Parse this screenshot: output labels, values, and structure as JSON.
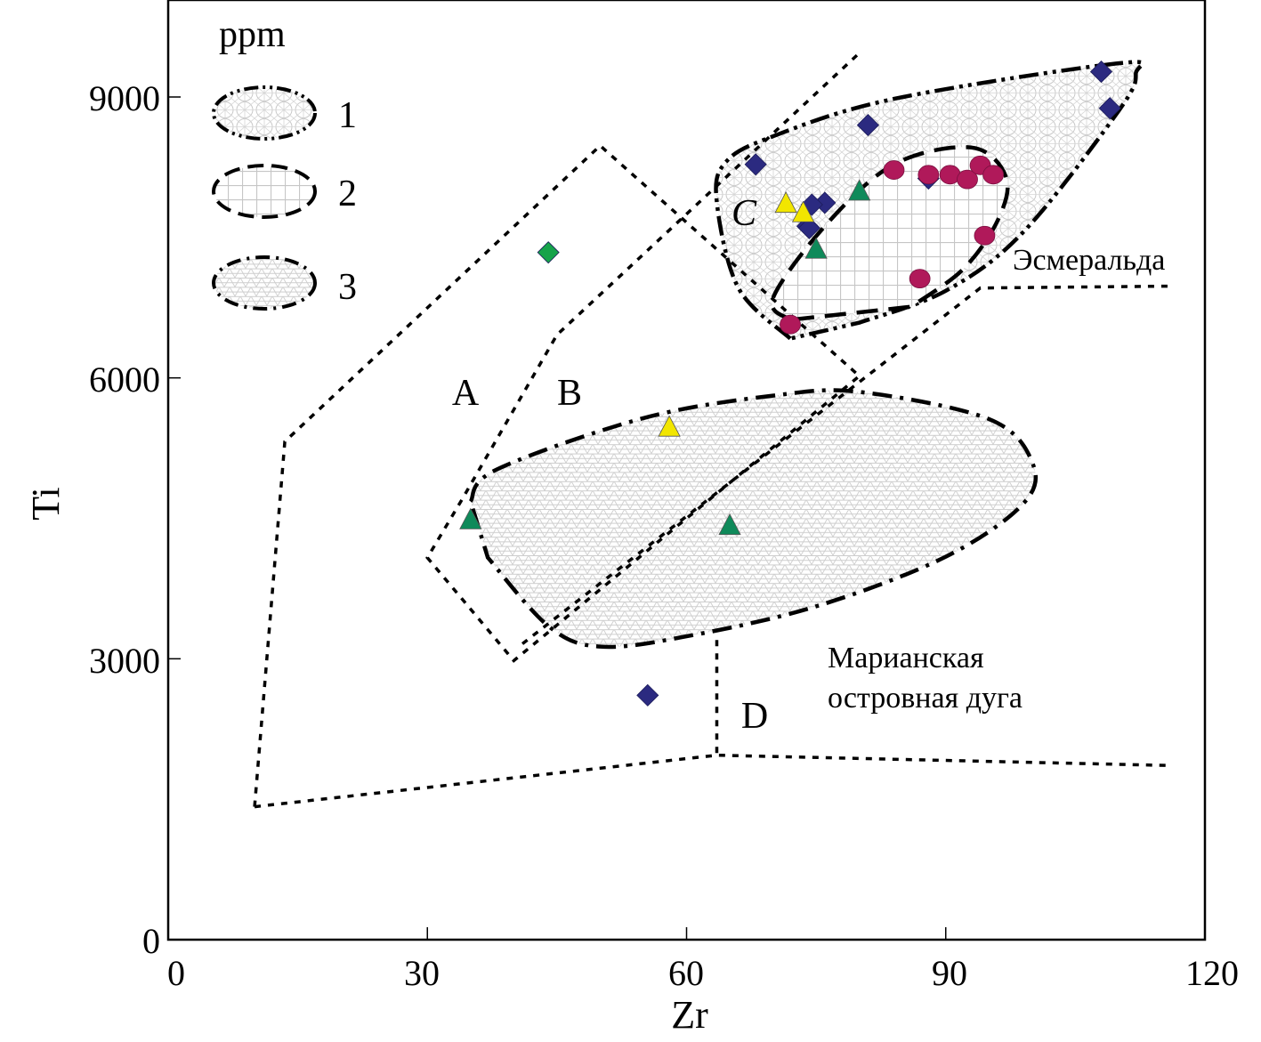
{
  "chart_data": {
    "type": "scatter",
    "title": "",
    "xlabel": "Zr",
    "ylabel": "Ti",
    "xlim": [
      0,
      120
    ],
    "ylim": [
      0,
      9000
    ],
    "x_ticks": [
      0,
      30,
      60,
      90,
      120
    ],
    "y_ticks": [
      0,
      3000,
      6000,
      9000
    ],
    "x_tick_labels": [
      "0",
      "30",
      "60",
      "90",
      "120"
    ],
    "y_tick_labels": [
      "0",
      "3000",
      "6000",
      "9000"
    ],
    "grid": false,
    "legend": {
      "placement": "top-left",
      "unit_label": "ppm",
      "entries": [
        {
          "id": "1",
          "label": "1",
          "pattern": "triangle-circle mesh",
          "border": "dash-dot-dot"
        },
        {
          "id": "2",
          "label": "2",
          "pattern": "square grid",
          "border": "dashed"
        },
        {
          "id": "3",
          "label": "3",
          "pattern": "triangular mesh",
          "border": "dash-dot"
        }
      ]
    },
    "discrimination_regions": {
      "labels": [
        {
          "text": "A",
          "x": 34.5,
          "y": 5840
        },
        {
          "text": "B",
          "x": 46.5,
          "y": 5840
        },
        {
          "text": "C",
          "x": 67.5,
          "y": 7720
        },
        {
          "text": "D",
          "x": 67.5,
          "y": 2370
        }
      ],
      "boundary_lines": [
        {
          "name": "field-A-outline",
          "points": [
            [
              10,
              1420
            ],
            [
              13.5,
              5320
            ],
            [
              50,
              8480
            ],
            [
              80,
              6020
            ],
            [
              40,
              2980
            ],
            [
              30,
              4080
            ],
            [
              34,
              4700
            ],
            [
              45,
              6460
            ],
            [
              80,
              9470
            ]
          ]
        },
        {
          "name": "field-B-line",
          "points": [
            [
              41,
              3160
            ],
            [
              94,
              6960
            ],
            [
              116,
              6980
            ]
          ]
        },
        {
          "name": "field-D-vertical",
          "points": [
            [
              63.5,
              3200
            ],
            [
              63.5,
              1970
            ]
          ]
        },
        {
          "name": "field-D-bottom",
          "points": [
            [
              10,
              1420
            ],
            [
              63.5,
              1970
            ],
            [
              116,
              1860
            ]
          ]
        }
      ]
    },
    "fields": [
      {
        "name": "Эсмеральда field 1",
        "legend_id": "1",
        "outline": [
          [
            72,
            6420
          ],
          [
            66,
            6960
          ],
          [
            63.5,
            7880
          ],
          [
            64.5,
            8300
          ],
          [
            70,
            8580
          ],
          [
            84,
            8980
          ],
          [
            110,
            9360
          ],
          [
            112,
            9250
          ],
          [
            110,
            8850
          ],
          [
            99,
            7560
          ],
          [
            90,
            6930
          ],
          [
            80,
            6590
          ],
          [
            72,
            6420
          ]
        ]
      },
      {
        "name": "Эсмеральда field 2",
        "legend_id": "2",
        "outline": [
          [
            72,
            6620
          ],
          [
            70,
            6850
          ],
          [
            76,
            7620
          ],
          [
            84,
            8280
          ],
          [
            93,
            8460
          ],
          [
            97,
            8140
          ],
          [
            96,
            7680
          ],
          [
            92,
            7160
          ],
          [
            86,
            6760
          ],
          [
            72,
            6420
          ]
        ]
      },
      {
        "name": "Марианская field 3",
        "legend_id": "3",
        "outline": [
          [
            35,
            4680
          ],
          [
            38,
            5020
          ],
          [
            55,
            5570
          ],
          [
            70,
            5810
          ],
          [
            80,
            5850
          ],
          [
            95,
            5560
          ],
          [
            100,
            5100
          ],
          [
            99,
            4660
          ],
          [
            90,
            4090
          ],
          [
            75,
            3560
          ],
          [
            60,
            3240
          ],
          [
            50,
            3130
          ],
          [
            44,
            3350
          ],
          [
            37,
            4080
          ],
          [
            35,
            4680
          ]
        ]
      }
    ],
    "annotations": [
      {
        "text": "Эсмеральда",
        "x": 97.5,
        "y": 7240
      },
      {
        "text": "Марианская",
        "x": 76.5,
        "y": 2980
      },
      {
        "text": "островная дуга",
        "x": 76.5,
        "y": 2660
      }
    ],
    "series": [
      {
        "name": "navy diamonds",
        "marker": "diamond",
        "color": "#2b2a80",
        "points": [
          [
            108,
            9270
          ],
          [
            109,
            8880
          ],
          [
            81,
            8700
          ],
          [
            68,
            8280
          ],
          [
            88,
            8130
          ],
          [
            76,
            7870
          ],
          [
            74.5,
            7850
          ],
          [
            74,
            7620
          ],
          [
            74.2,
            7600
          ],
          [
            55.5,
            2610
          ]
        ]
      },
      {
        "name": "magenta circles",
        "marker": "circle",
        "color": "#b0195a",
        "points": [
          [
            84,
            8220
          ],
          [
            88,
            8170
          ],
          [
            90.5,
            8170
          ],
          [
            92.5,
            8120
          ],
          [
            94,
            8270
          ],
          [
            95.5,
            8170
          ],
          [
            94.5,
            7520
          ],
          [
            87,
            7060
          ],
          [
            72,
            6570
          ]
        ]
      },
      {
        "name": "green triangles",
        "marker": "triangle",
        "color": "#0f8a5a",
        "points": [
          [
            80,
            8000
          ],
          [
            75,
            7380
          ],
          [
            35,
            4490
          ],
          [
            65,
            4430
          ]
        ]
      },
      {
        "name": "yellow triangles",
        "marker": "triangle",
        "color": "#f2e600",
        "points": [
          [
            71.5,
            7870
          ],
          [
            73.5,
            7770
          ],
          [
            58,
            5480
          ]
        ]
      },
      {
        "name": "green diamond",
        "marker": "diamond",
        "color": "#16a34a",
        "points": [
          [
            44,
            7340
          ]
        ]
      }
    ]
  }
}
